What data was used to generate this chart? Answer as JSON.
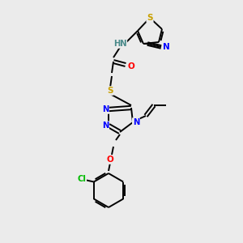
{
  "background_color": "#ebebeb",
  "bond_color": "#000000",
  "atom_colors": {
    "S": "#c8a000",
    "N": "#0000ff",
    "O": "#ff0000",
    "Cl": "#00bb00",
    "C": "#000000",
    "H": "#4a8a8a"
  }
}
